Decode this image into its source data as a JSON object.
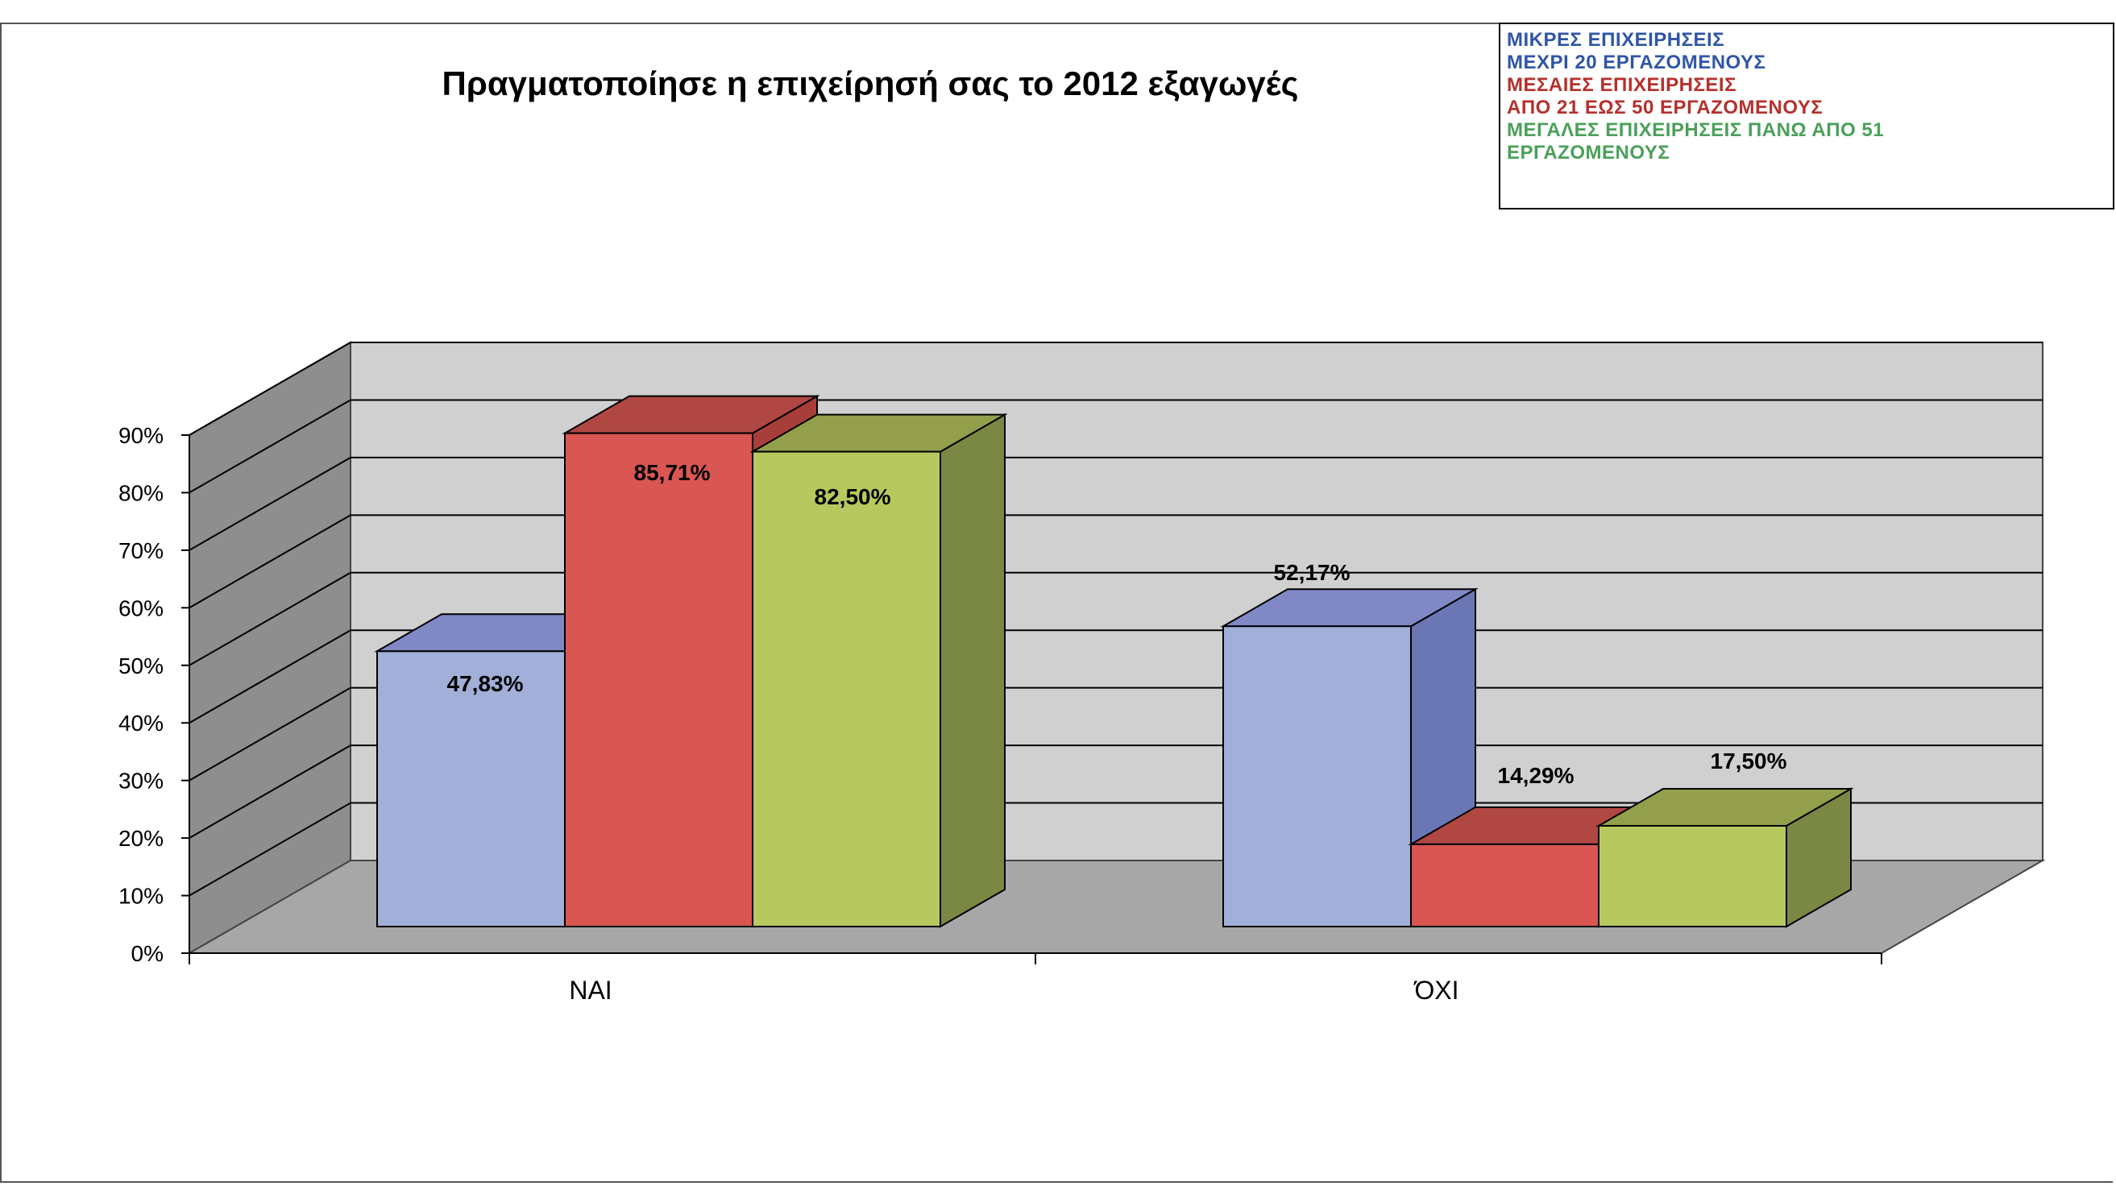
{
  "chart_data": {
    "type": "bar",
    "title": "Πραγματοποίησε η επιχείρησή σας το 2012 εξαγωγές",
    "xlabel": "",
    "ylabel": "",
    "categories": [
      "ΝΑΙ",
      "ΌΧΙ"
    ],
    "ylim": [
      0,
      90
    ],
    "y_ticks": [
      "0%",
      "10%",
      "20%",
      "30%",
      "40%",
      "50%",
      "60%",
      "70%",
      "80%",
      "90%"
    ],
    "grid": true,
    "legend_position": "top-right",
    "series": [
      {
        "name": "ΜΙΚΡΕΣ ΕΠΙΧΕΙΡΗΣΕΙΣ ΜΕΧΡΙ 20 ΕΡΓΑΖΟΜΕΝΟΥΣ",
        "values": [
          47.83,
          52.17
        ],
        "labels": [
          "47,83%",
          "52,17%"
        ],
        "color": "#a2afd9",
        "top_color": "#8088c6",
        "side_color": "#6b76b5"
      },
      {
        "name": "ΜΕΣΑΙΕΣ ΕΠΙΧΕΙΡΗΣΕΙΣ ΑΠΟ 21 ΕΩΣ 50 ΕΡΓΑΖΟΜΕΝΟΥΣ",
        "values": [
          85.71,
          14.29
        ],
        "labels": [
          "85,71%",
          "14,29%"
        ],
        "color": "#d95652",
        "top_color": "#b14743",
        "side_color": "#a83e3a"
      },
      {
        "name": "ΜΕΓΑΛΕΣ ΕΠΙΧΕΙΡΗΣΕΙΣ ΠΑΝΩ ΑΠΟ 51 ΕΡΓΑΖΟΜΕΝΟΥΣ",
        "values": [
          82.5,
          17.5
        ],
        "labels": [
          "82,50%",
          "17,50%"
        ],
        "color": "#b7c95e",
        "top_color": "#939f4b",
        "side_color": "#7a8843"
      }
    ]
  },
  "legend": {
    "lines": [
      {
        "text": "ΜΙΚΡΕΣ ΕΠΙΧΕΙΡΗΣΕΙΣ",
        "color": "#2f56a6"
      },
      {
        "text": "ΜΕΧΡΙ  20 ΕΡΓΑΖΟΜΕΝΟΥΣ",
        "color": "#2f56a6"
      },
      {
        "text": "ΜΕΣΑΙΕΣ ΕΠΙΧΕΙΡΗΣΕΙΣ",
        "color": "#b5302c"
      },
      {
        "text": "ΑΠΟ 21 ΕΩΣ 50 ΕΡΓΑΖΟΜΕΝΟΥΣ",
        "color": "#b5302c"
      },
      {
        "text": "ΜΕΓΑΛΕΣ ΕΠΙΧΕΙΡΗΣΕΙΣ ΠΑΝΩ  ΑΠΟ 51",
        "color": "#4aa05a"
      },
      {
        "text": "ΕΡΓΑΖΟΜΕΝΟΥΣ",
        "color": "#4aa05a"
      }
    ]
  }
}
